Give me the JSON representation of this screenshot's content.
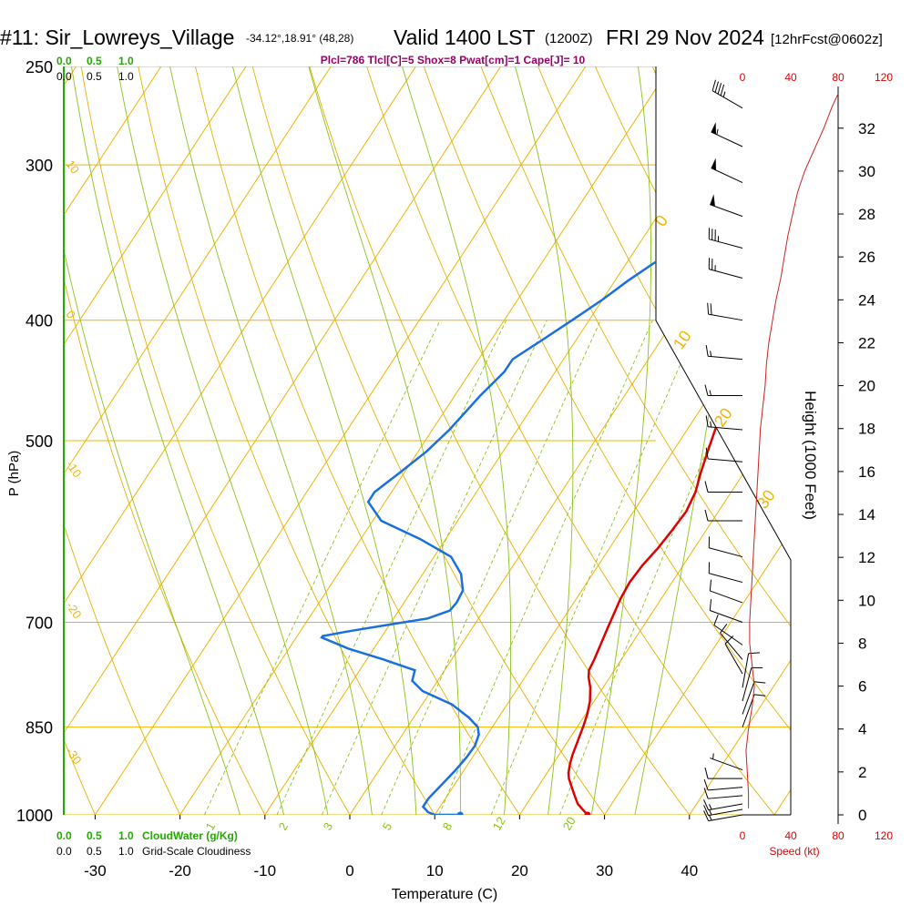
{
  "header": {
    "station": "#11: Sir_Lowreys_Village",
    "coords": "-34.12°,18.91° (48,28)",
    "valid": "Valid 1400 LST",
    "utc": "(1200Z)",
    "date": "FRI 29 Nov 2024",
    "forecast": "[12hrFcst@0602z]",
    "indices": "Plcl=786 Tlcl[C]=5 Shox=8 Pwat[cm]=1 Cape[J]= 10"
  },
  "scales": {
    "cloudwater_top": [
      "0.0",
      "0.5",
      "1.0"
    ],
    "cloudiness_top": [
      "0.0",
      "0.5",
      "1.0"
    ],
    "cloudwater_bottom": [
      "0.0",
      "0.5",
      "1.0"
    ],
    "cloudiness_bottom": [
      "0.0",
      "0.5",
      "1.0"
    ],
    "cloudwater_label": "CloudWater (g/Kg)",
    "cloudiness_label": "Grid-Scale Cloudiness",
    "speed_ticks": [
      "0",
      "40",
      "80",
      "120"
    ],
    "speed_label": "Speed (kt)"
  },
  "colors": {
    "isotherm": "#f0b400",
    "dry_adiabat": "#e8b000",
    "moist_adiabat": "#8cc21a",
    "mixing_ratio": "#8cc21a",
    "temperature": "#e00000",
    "dewpoint": "#1a6fe0",
    "wind_speed": "#cc2020",
    "cloud_scale": "#22aa00",
    "indices": "#990066"
  },
  "chart_data": {
    "type": "line",
    "xlabel": "Temperature (C)",
    "ylabel": "P (hPa)",
    "y2label": "Height (1000 Feet)",
    "x_ticks": [
      -30,
      -20,
      -10,
      0,
      10,
      20,
      30,
      40
    ],
    "p_ticks": [
      250,
      300,
      400,
      500,
      700,
      850,
      1000
    ],
    "height_ticks": [
      0,
      2,
      4,
      6,
      8,
      10,
      12,
      14,
      16,
      18,
      20,
      22,
      24,
      26,
      28,
      30,
      32
    ],
    "isotherm_labels": [
      "10",
      "0",
      "-10",
      "-20",
      "-30"
    ],
    "adiabat_labels": [
      "0",
      "10",
      "20",
      "30"
    ],
    "mixing_ratio_labels": [
      "1",
      "2",
      "3",
      "5",
      "8",
      "12",
      "20"
    ],
    "series": [
      {
        "name": "Temperature",
        "points": [
          [
            28.0,
            1000
          ],
          [
            27.5,
            995
          ],
          [
            27.0,
            990
          ],
          [
            26.0,
            980
          ],
          [
            25.0,
            965
          ],
          [
            24.0,
            950
          ],
          [
            23.0,
            935
          ],
          [
            22.5,
            925
          ],
          [
            22.0,
            910
          ],
          [
            21.6,
            895
          ],
          [
            21.3,
            880
          ],
          [
            21.0,
            865
          ],
          [
            20.7,
            850
          ],
          [
            20.2,
            830
          ],
          [
            19.5,
            810
          ],
          [
            18.5,
            790
          ],
          [
            17.5,
            775
          ],
          [
            17.0,
            765
          ],
          [
            16.8,
            750
          ],
          [
            16.4,
            730
          ],
          [
            16.0,
            710
          ],
          [
            15.6,
            690
          ],
          [
            15.2,
            670
          ],
          [
            15.0,
            650
          ],
          [
            15.2,
            630
          ],
          [
            15.7,
            610
          ],
          [
            16.0,
            590
          ],
          [
            16.2,
            570
          ],
          [
            15.8,
            550
          ],
          [
            14.9,
            530
          ],
          [
            14.1,
            510
          ],
          [
            13.3,
            490
          ],
          [
            12.6,
            470
          ],
          [
            11.9,
            450
          ],
          [
            11.7,
            440
          ],
          [
            11.5,
            425
          ],
          [
            10.8,
            410
          ],
          [
            10.1,
            400
          ],
          [
            9.0,
            385
          ],
          [
            8.0,
            370
          ],
          [
            7.0,
            355
          ],
          [
            6.0,
            340
          ],
          [
            5.0,
            325
          ],
          [
            3.7,
            310
          ],
          [
            2.8,
            300
          ],
          [
            2.0,
            290
          ],
          [
            1.0,
            275
          ],
          [
            0.0,
            262
          ]
        ]
      },
      {
        "name": "Dewpoint",
        "points": [
          [
            13.0,
            1000
          ],
          [
            10.0,
            1000
          ],
          [
            9.0,
            995
          ],
          [
            8.0,
            985
          ],
          [
            8.0,
            970
          ],
          [
            8.5,
            945
          ],
          [
            9.0,
            920
          ],
          [
            9.3,
            900
          ],
          [
            9.4,
            880
          ],
          [
            9.0,
            862
          ],
          [
            8.3,
            850
          ],
          [
            6.5,
            835
          ],
          [
            3.5,
            815
          ],
          [
            -1.0,
            795
          ],
          [
            -3.0,
            780
          ],
          [
            -3.5,
            765
          ],
          [
            -8.0,
            750
          ],
          [
            -13.0,
            735
          ],
          [
            -17.0,
            720
          ],
          [
            -17.0,
            718
          ],
          [
            -14.0,
            711
          ],
          [
            -10.0,
            703
          ],
          [
            -6.0,
            695
          ],
          [
            -4.0,
            685
          ],
          [
            -3.8,
            675
          ],
          [
            -4.0,
            660
          ],
          [
            -5.5,
            640
          ],
          [
            -8.0,
            620
          ],
          [
            -13.0,
            600
          ],
          [
            -19.0,
            580
          ],
          [
            -22.0,
            560
          ],
          [
            -22.0,
            550
          ],
          [
            -20.5,
            530
          ],
          [
            -19.0,
            510
          ],
          [
            -18.0,
            490
          ],
          [
            -17.5,
            475
          ],
          [
            -17.0,
            460
          ],
          [
            -16.0,
            440
          ],
          [
            -16.0,
            430
          ],
          [
            -14.0,
            415
          ],
          [
            -12.0,
            400
          ],
          [
            -10.0,
            385
          ],
          [
            -8.5,
            372
          ],
          [
            -6.5,
            358
          ],
          [
            -4.5,
            345
          ],
          [
            -3.5,
            335
          ],
          [
            -3.3,
            325
          ],
          [
            -3.2,
            315
          ],
          [
            -4.0,
            300
          ],
          [
            -5.0,
            285
          ],
          [
            -6.0,
            272
          ],
          [
            -6.5,
            265
          ]
        ]
      },
      {
        "name": "Wind Speed",
        "points": [
          [
            5,
            0.3
          ],
          [
            5,
            1
          ],
          [
            4,
            2
          ],
          [
            3,
            3
          ],
          [
            5,
            4
          ],
          [
            8,
            5
          ],
          [
            10,
            6
          ],
          [
            8,
            7
          ],
          [
            6,
            8
          ],
          [
            6,
            9
          ],
          [
            7,
            10
          ],
          [
            8,
            11
          ],
          [
            9,
            12
          ],
          [
            10,
            13
          ],
          [
            11,
            14
          ],
          [
            12,
            15
          ],
          [
            13,
            16
          ],
          [
            14,
            17
          ],
          [
            15,
            18
          ],
          [
            17,
            19
          ],
          [
            19,
            20
          ],
          [
            20,
            21
          ],
          [
            22,
            22
          ],
          [
            25,
            23
          ],
          [
            28,
            24
          ],
          [
            32,
            25
          ],
          [
            35,
            26
          ],
          [
            38,
            27
          ],
          [
            42,
            28
          ],
          [
            46,
            29
          ],
          [
            52,
            30
          ],
          [
            60,
            31
          ],
          [
            68,
            32
          ],
          [
            75,
            33
          ],
          [
            80,
            33.6
          ]
        ]
      }
    ],
    "wind_barbs": [
      {
        "p": 1000,
        "dir": 260,
        "spd": 15
      },
      {
        "p": 990,
        "dir": 260,
        "spd": 15
      },
      {
        "p": 980,
        "dir": 260,
        "spd": 15
      },
      {
        "p": 965,
        "dir": 265,
        "spd": 10
      },
      {
        "p": 950,
        "dir": 265,
        "spd": 10
      },
      {
        "p": 935,
        "dir": 270,
        "spd": 10
      },
      {
        "p": 920,
        "dir": 290,
        "spd": 5
      },
      {
        "p": 850,
        "dir": 20,
        "spd": 10
      },
      {
        "p": 830,
        "dir": 20,
        "spd": 10
      },
      {
        "p": 810,
        "dir": 15,
        "spd": 10
      },
      {
        "p": 790,
        "dir": 10,
        "spd": 10
      },
      {
        "p": 770,
        "dir": 330,
        "spd": 10
      },
      {
        "p": 750,
        "dir": 320,
        "spd": 10
      },
      {
        "p": 730,
        "dir": 305,
        "spd": 10
      },
      {
        "p": 700,
        "dir": 290,
        "spd": 10
      },
      {
        "p": 675,
        "dir": 290,
        "spd": 10
      },
      {
        "p": 650,
        "dir": 285,
        "spd": 10
      },
      {
        "p": 620,
        "dir": 285,
        "spd": 10
      },
      {
        "p": 580,
        "dir": 270,
        "spd": 10
      },
      {
        "p": 550,
        "dir": 270,
        "spd": 10
      },
      {
        "p": 520,
        "dir": 275,
        "spd": 10
      },
      {
        "p": 490,
        "dir": 275,
        "spd": 15
      },
      {
        "p": 460,
        "dir": 270,
        "spd": 15
      },
      {
        "p": 430,
        "dir": 275,
        "spd": 15
      },
      {
        "p": 400,
        "dir": 280,
        "spd": 20
      },
      {
        "p": 370,
        "dir": 285,
        "spd": 25
      },
      {
        "p": 350,
        "dir": 285,
        "spd": 35
      },
      {
        "p": 330,
        "dir": 290,
        "spd": 50
      },
      {
        "p": 310,
        "dir": 295,
        "spd": 50
      },
      {
        "p": 290,
        "dir": 295,
        "spd": 55
      },
      {
        "p": 270,
        "dir": 300,
        "spd": 45
      }
    ]
  }
}
